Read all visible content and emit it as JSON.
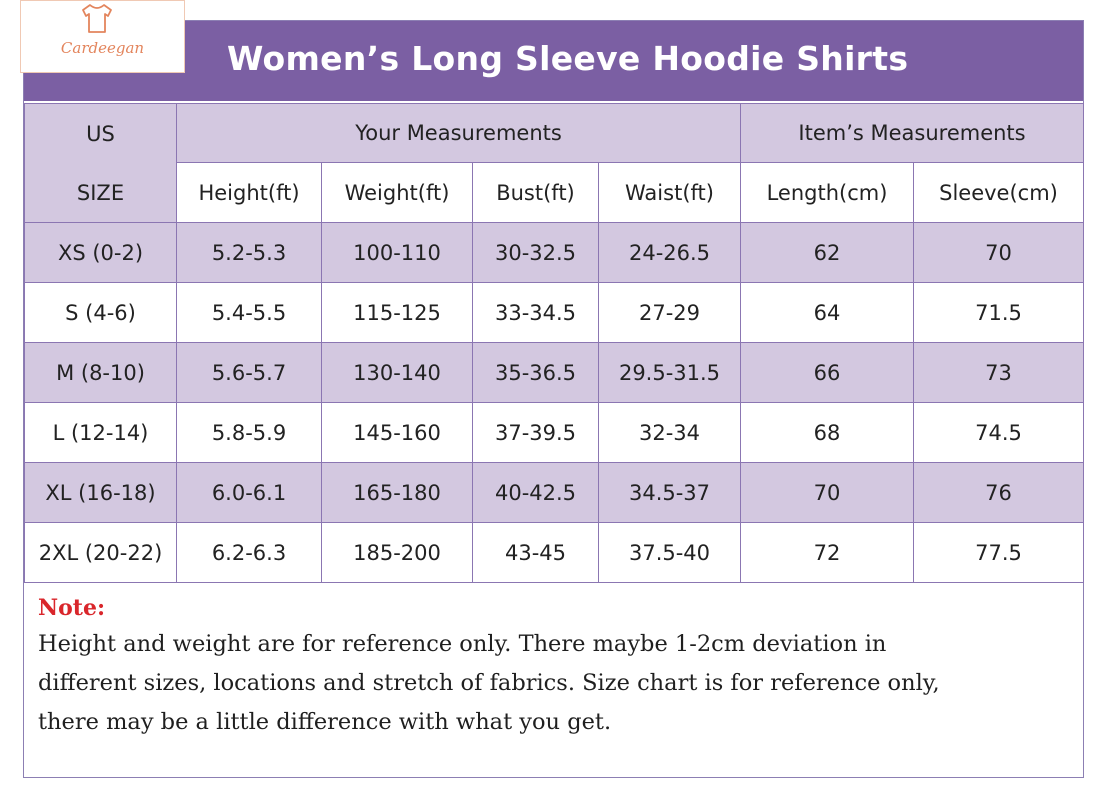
{
  "brand": {
    "name": "Cardeegan",
    "icon": "tshirt-icon",
    "color": "#e3855d"
  },
  "title": "Women’s Long Sleeve Hoodie Shirts",
  "colors": {
    "banner": "#7b5fa3",
    "shade": "#d3c8e0",
    "note_label": "#d9262b"
  },
  "table": {
    "us_size_line1": "US",
    "us_size_line2": "SIZE",
    "group_your": "Your Measurements",
    "group_item": "Item’s Measurements",
    "columns": [
      "Height(ft)",
      "Weight(ft)",
      "Bust(ft)",
      "Waist(ft)",
      "Length(cm)",
      "Sleeve(cm)"
    ],
    "rows": [
      [
        "XS (0-2)",
        "5.2-5.3",
        "100-110",
        "30-32.5",
        "24-26.5",
        "62",
        "70"
      ],
      [
        "S (4-6)",
        "5.4-5.5",
        "115-125",
        "33-34.5",
        "27-29",
        "64",
        "71.5"
      ],
      [
        "M (8-10)",
        "5.6-5.7",
        "130-140",
        "35-36.5",
        "29.5-31.5",
        "66",
        "73"
      ],
      [
        "L (12-14)",
        "5.8-5.9",
        "145-160",
        "37-39.5",
        "32-34",
        "68",
        "74.5"
      ],
      [
        "XL (16-18)",
        "6.0-6.1",
        "165-180",
        "40-42.5",
        "34.5-37",
        "70",
        "76"
      ],
      [
        "2XL (20-22)",
        "6.2-6.3",
        "185-200",
        "43-45",
        "37.5-40",
        "72",
        "77.5"
      ]
    ]
  },
  "note": {
    "label": "Note:",
    "lines": [
      "Height and weight are for reference only. There maybe 1-2cm deviation in",
      "different sizes, locations and stretch of fabrics. Size chart is for reference only,",
      "there may be a little difference with what you get."
    ]
  }
}
